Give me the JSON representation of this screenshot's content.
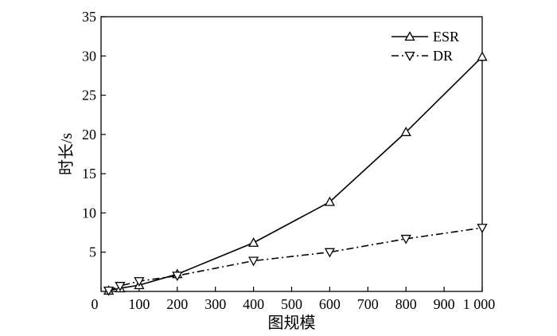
{
  "chart_data": {
    "type": "line",
    "title": "",
    "xlabel": "图规模",
    "ylabel": "时长/s",
    "xlim": [
      0,
      1000
    ],
    "ylim": [
      0,
      35
    ],
    "xticks": [
      0,
      100,
      200,
      300,
      400,
      500,
      600,
      700,
      800,
      900,
      1000
    ],
    "xtick_labels": [
      "0",
      "100",
      "200",
      "300",
      "400",
      "500",
      "600",
      "700",
      "800",
      "900",
      "1 000"
    ],
    "yticks": [
      5,
      10,
      15,
      20,
      25,
      30,
      35
    ],
    "ytick_labels": [
      "5",
      "10",
      "15",
      "20",
      "25",
      "30",
      "35"
    ],
    "grid": false,
    "legend_position": "top-right",
    "series": [
      {
        "name": "ESR",
        "marker": "triangle-up",
        "line_style": "solid",
        "color": "#000000",
        "x": [
          20,
          50,
          100,
          200,
          400,
          600,
          800,
          1000
        ],
        "y": [
          0.1,
          0.4,
          0.8,
          2.2,
          6.2,
          11.4,
          20.3,
          29.9
        ]
      },
      {
        "name": "DR",
        "marker": "triangle-down",
        "line_style": "dash-dot",
        "color": "#000000",
        "x": [
          20,
          50,
          100,
          200,
          400,
          600,
          800,
          1000
        ],
        "y": [
          0.1,
          0.7,
          1.3,
          2.0,
          3.9,
          5.0,
          6.7,
          8.1
        ]
      }
    ]
  }
}
